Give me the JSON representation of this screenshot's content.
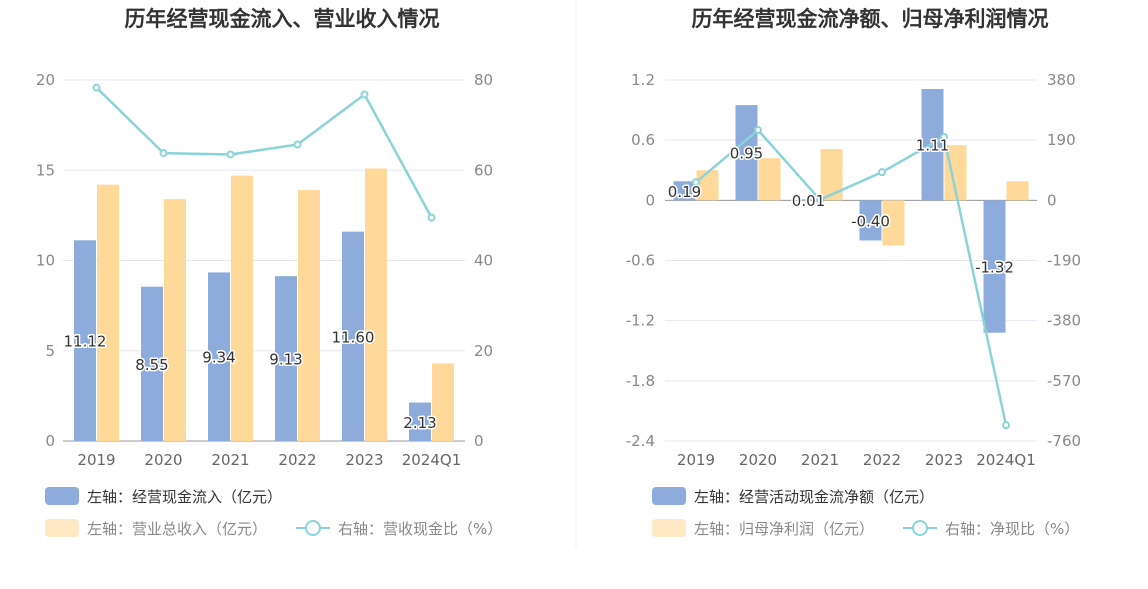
{
  "chart_data": [
    {
      "type": "bar",
      "title": "历年经营现金流入、营业收入情况",
      "categories": [
        "2019",
        "2020",
        "2021",
        "2022",
        "2023",
        "2024Q1"
      ],
      "left_axis": {
        "ylim": [
          0,
          20
        ],
        "ticks": [
          "0",
          "5",
          "10",
          "15",
          "20"
        ]
      },
      "right_axis": {
        "ylim": [
          0,
          80
        ],
        "ticks": [
          "0",
          "20",
          "40",
          "60",
          "80"
        ]
      },
      "series": [
        {
          "name": "左轴：经营现金流入（亿元）",
          "kind": "bar",
          "axis": "left",
          "color": "#8eacdb",
          "values": [
            11.12,
            8.55,
            9.34,
            9.13,
            11.6,
            2.13
          ],
          "labels": [
            "11.12",
            "8.55",
            "9.34",
            "9.13",
            "11.60",
            "2.13"
          ]
        },
        {
          "name": "左轴：营业总收入（亿元）",
          "kind": "bar",
          "axis": "left",
          "color": "#fed999",
          "values": [
            14.2,
            13.4,
            14.7,
            13.9,
            15.1,
            4.3
          ]
        },
        {
          "name": "右轴：营收现金比（%）",
          "kind": "line",
          "axis": "right",
          "color": "#8ad4d9",
          "values": [
            78.3,
            63.8,
            63.5,
            65.7,
            76.8,
            49.5
          ]
        }
      ],
      "legend": "bottom-left"
    },
    {
      "type": "bar",
      "title": "历年经营现金流净额、归母净利润情况",
      "categories": [
        "2019",
        "2020",
        "2021",
        "2022",
        "2023",
        "2024Q1"
      ],
      "left_axis": {
        "ylim": [
          -2.4,
          1.2
        ],
        "ticks": [
          "-2.4",
          "-1.8",
          "-1.2",
          "-0.6",
          "0",
          "0.6",
          "1.2"
        ]
      },
      "right_axis": {
        "ylim": [
          -760,
          380
        ],
        "ticks": [
          "-760",
          "-570",
          "-380",
          "-190",
          "0",
          "190",
          "380"
        ]
      },
      "series": [
        {
          "name": "左轴：经营活动现金流净额（亿元）",
          "kind": "bar",
          "axis": "left",
          "color": "#8eacdb",
          "values": [
            0.19,
            0.95,
            0.01,
            -0.4,
            1.11,
            -1.32
          ],
          "labels": [
            "0.19",
            "0.95",
            "0.01",
            "-0.40",
            "1.11",
            "-1.32"
          ]
        },
        {
          "name": "左轴：归母净利润（亿元）",
          "kind": "bar",
          "axis": "left",
          "color": "#fed999",
          "values": [
            0.3,
            0.42,
            0.51,
            -0.45,
            0.55,
            0.19
          ]
        },
        {
          "name": "右轴：净现比（%）",
          "kind": "line",
          "axis": "right",
          "color": "#8ad4d9",
          "values": [
            57,
            222,
            2,
            89,
            200,
            -710
          ]
        }
      ],
      "legend": "bottom-left"
    }
  ]
}
